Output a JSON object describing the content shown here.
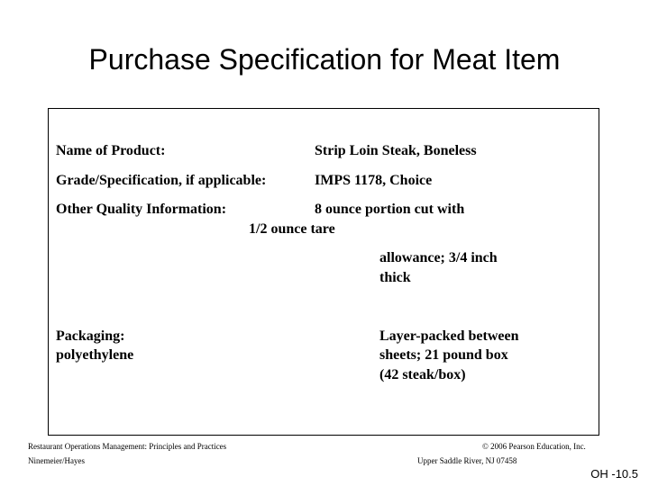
{
  "title": "Purchase Specification for Meat Item",
  "spec": {
    "product_label": "Name of Product:",
    "product_value": "Strip Loin Steak, Boneless",
    "grade_label": "Grade/Specification, if applicable:",
    "grade_value": "IMPS 1178, Choice",
    "quality_label": "Other Quality Information:",
    "quality_value_line1": "8 ounce portion cut with",
    "quality_value_line2": "1/2 ounce tare",
    "quality_value_line3": "allowance; 3/4 inch",
    "quality_value_line4": "thick",
    "packaging_label_line1": "Packaging:",
    "packaging_label_line2": "polyethylene",
    "packaging_value_line1": "Layer-packed between",
    "packaging_value_line2": "sheets; 21 pound box",
    "packaging_value_line3": "(42 steak/box)"
  },
  "footer": {
    "book_title": "Restaurant Operations Management: Principles and Practices",
    "authors": "Ninemeier/Hayes",
    "copyright": "© 2006 Pearson Education, Inc.",
    "publisher_location": "Upper Saddle River, NJ 07458"
  },
  "page_id": "OH -10.5"
}
